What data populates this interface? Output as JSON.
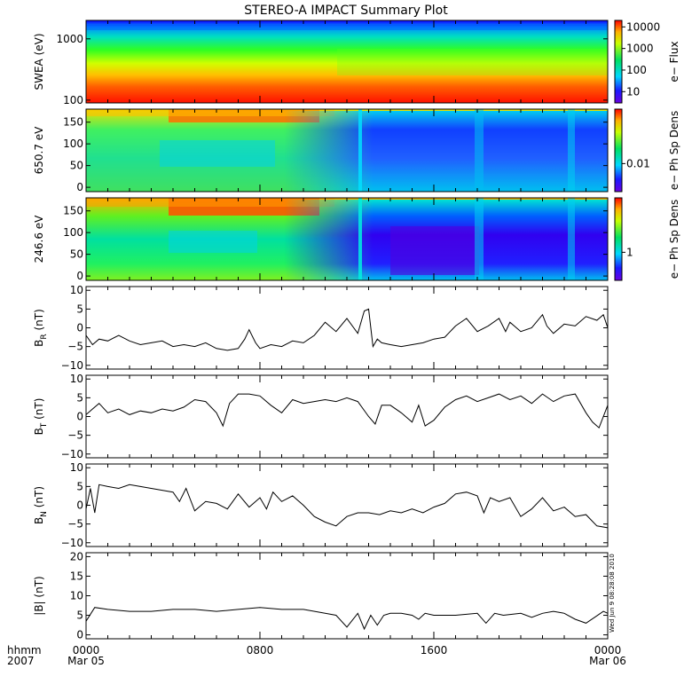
{
  "title": "STEREO-A IMPACT Summary Plot",
  "time_axis": {
    "start_label": "0000",
    "start_date": "Mar 05",
    "mid_label": "0800",
    "late_label": "1600",
    "end_label": "0000",
    "end_date": "Mar 06",
    "unit_label": "hhmm",
    "year_label": "2007"
  },
  "stamp": "Wed Jun 9 08:28:08 2010",
  "chart_data": [
    {
      "type": "heatmap",
      "ylabel": "SWEA (eV)",
      "yscale": "log",
      "ylim": [
        90,
        2000
      ],
      "yticks": [
        "1000",
        "100"
      ],
      "colorbar": {
        "label": "e− Flux",
        "ticks": [
          "10000",
          "1000",
          "100",
          "10"
        ],
        "scale": "log",
        "range": [
          3,
          20000
        ]
      }
    },
    {
      "type": "heatmap",
      "ylabel": "650.7 eV",
      "ylim": [
        -10,
        180
      ],
      "yticks": [
        "150",
        "100",
        "50",
        "0"
      ],
      "colorbar": {
        "label": "e− Ph Sp Dens",
        "ticks": [
          "0.01"
        ]
      }
    },
    {
      "type": "heatmap",
      "ylabel": "246.6 eV",
      "ylim": [
        -10,
        180
      ],
      "yticks": [
        "150",
        "100",
        "50",
        "0"
      ],
      "colorbar": {
        "label": "e− Ph Sp Dens",
        "ticks": [
          "1"
        ]
      }
    },
    {
      "type": "line",
      "ylabel": "B_R (nT)",
      "ylim": [
        -11,
        11
      ],
      "yticks": [
        "10",
        "5",
        "0",
        "−5",
        "−10"
      ],
      "x_hours": [
        0,
        0.3,
        0.6,
        1.0,
        1.5,
        2.0,
        2.5,
        3.0,
        3.5,
        4.0,
        4.5,
        5.0,
        5.5,
        6.0,
        6.5,
        7.0,
        7.3,
        7.5,
        7.8,
        8.0,
        8.5,
        9.0,
        9.5,
        10.0,
        10.5,
        11.0,
        11.5,
        12.0,
        12.5,
        12.8,
        13.0,
        13.2,
        13.4,
        13.6,
        14.0,
        14.5,
        15.0,
        15.5,
        16.0,
        16.5,
        17.0,
        17.5,
        18.0,
        18.5,
        19.0,
        19.3,
        19.5,
        20.0,
        20.5,
        21.0,
        21.2,
        21.5,
        22.0,
        22.5,
        23.0,
        23.5,
        23.8,
        24.0
      ],
      "values": [
        -2.0,
        -4.5,
        -3.0,
        -3.5,
        -2.0,
        -3.5,
        -4.5,
        -4.0,
        -3.5,
        -5.0,
        -4.5,
        -5.0,
        -4.0,
        -5.5,
        -6.0,
        -5.5,
        -3.0,
        -0.5,
        -4.0,
        -5.5,
        -4.5,
        -5.0,
        -3.5,
        -4.0,
        -2.0,
        1.5,
        -1.0,
        2.5,
        -1.5,
        4.5,
        5.0,
        -5.0,
        -3.0,
        -4.0,
        -4.5,
        -5.0,
        -4.5,
        -4.0,
        -3.0,
        -2.5,
        0.5,
        2.5,
        -1.0,
        0.5,
        2.5,
        -1.0,
        1.5,
        -1.0,
        0.0,
        3.5,
        0.5,
        -1.5,
        1.0,
        0.5,
        3.0,
        2.0,
        3.5,
        0.0
      ]
    },
    {
      "type": "line",
      "ylabel": "B_T (nT)",
      "ylim": [
        -11,
        11
      ],
      "yticks": [
        "10",
        "5",
        "0",
        "−5",
        "−10"
      ],
      "x_hours": [
        0,
        0.3,
        0.6,
        1.0,
        1.5,
        2.0,
        2.5,
        3.0,
        3.5,
        4.0,
        4.5,
        5.0,
        5.5,
        6.0,
        6.3,
        6.6,
        7.0,
        7.5,
        8.0,
        8.5,
        9.0,
        9.5,
        10.0,
        10.5,
        11.0,
        11.5,
        12.0,
        12.5,
        13.0,
        13.3,
        13.6,
        14.0,
        14.5,
        15.0,
        15.3,
        15.6,
        16.0,
        16.5,
        17.0,
        17.5,
        18.0,
        18.5,
        19.0,
        19.5,
        20.0,
        20.5,
        21.0,
        21.5,
        22.0,
        22.5,
        23.0,
        23.3,
        23.6,
        24.0
      ],
      "values": [
        0.5,
        2.0,
        3.5,
        1.0,
        2.0,
        0.5,
        1.5,
        1.0,
        2.0,
        1.5,
        2.5,
        4.5,
        4.0,
        1.0,
        -2.5,
        3.5,
        6.0,
        6.0,
        5.5,
        3.0,
        1.0,
        4.5,
        3.5,
        4.0,
        4.5,
        4.0,
        5.0,
        4.0,
        0.0,
        -2.0,
        3.0,
        3.0,
        1.0,
        -1.5,
        3.0,
        -2.5,
        -1.0,
        2.5,
        4.5,
        5.5,
        4.0,
        5.0,
        6.0,
        4.5,
        5.5,
        3.5,
        6.0,
        4.0,
        5.5,
        6.0,
        1.0,
        -1.5,
        -3.0,
        3.0
      ]
    },
    {
      "type": "line",
      "ylabel": "B_N (nT)",
      "ylim": [
        -11,
        11
      ],
      "yticks": [
        "10",
        "5",
        "0",
        "−5",
        "−10"
      ],
      "x_hours": [
        0,
        0.2,
        0.4,
        0.6,
        1.0,
        1.5,
        2.0,
        2.5,
        3.0,
        3.5,
        4.0,
        4.3,
        4.6,
        5.0,
        5.5,
        6.0,
        6.5,
        7.0,
        7.5,
        8.0,
        8.3,
        8.6,
        9.0,
        9.5,
        10.0,
        10.5,
        11.0,
        11.5,
        12.0,
        12.5,
        13.0,
        13.5,
        14.0,
        14.5,
        15.0,
        15.5,
        16.0,
        16.5,
        17.0,
        17.5,
        18.0,
        18.3,
        18.6,
        19.0,
        19.5,
        20.0,
        20.5,
        21.0,
        21.5,
        22.0,
        22.5,
        23.0,
        23.5,
        24.0
      ],
      "values": [
        -1.0,
        4.5,
        -2.0,
        5.5,
        5.0,
        4.5,
        5.5,
        5.0,
        4.5,
        4.0,
        3.5,
        1.0,
        4.5,
        -1.5,
        1.0,
        0.5,
        -1.0,
        3.0,
        -0.5,
        2.0,
        -1.0,
        3.5,
        1.0,
        2.5,
        0.0,
        -3.0,
        -4.5,
        -5.5,
        -3.0,
        -2.0,
        -2.0,
        -2.5,
        -1.5,
        -2.0,
        -1.0,
        -2.0,
        -0.5,
        0.5,
        3.0,
        3.5,
        2.5,
        -2.0,
        2.0,
        1.0,
        2.0,
        -3.0,
        -1.0,
        2.0,
        -1.5,
        -0.5,
        -3.0,
        -2.5,
        -5.5,
        -6.0
      ]
    },
    {
      "type": "line",
      "ylabel": "|B| (nT)",
      "ylim": [
        -1,
        21
      ],
      "yticks": [
        "20",
        "15",
        "10",
        "5",
        "0"
      ],
      "x_hours": [
        0,
        0.4,
        1.0,
        2.0,
        3.0,
        4.0,
        5.0,
        6.0,
        7.0,
        8.0,
        9.0,
        10.0,
        11.0,
        11.5,
        12.0,
        12.5,
        12.8,
        13.1,
        13.4,
        13.7,
        14.0,
        14.5,
        15.0,
        15.3,
        15.6,
        16.0,
        17.0,
        18.0,
        18.4,
        18.8,
        19.2,
        20.0,
        20.5,
        21.0,
        21.5,
        22.0,
        22.5,
        23.0,
        23.4,
        23.8,
        24.0
      ],
      "values": [
        3.5,
        7.0,
        6.5,
        6.0,
        6.0,
        6.5,
        6.5,
        6.0,
        6.5,
        7.0,
        6.5,
        6.5,
        5.5,
        5.0,
        2.0,
        5.5,
        1.5,
        5.0,
        2.5,
        5.0,
        5.5,
        5.5,
        5.0,
        4.0,
        5.5,
        5.0,
        5.0,
        5.5,
        3.0,
        5.5,
        5.0,
        5.5,
        4.5,
        5.5,
        6.0,
        5.5,
        4.0,
        3.0,
        4.5,
        6.0,
        5.5
      ]
    }
  ]
}
